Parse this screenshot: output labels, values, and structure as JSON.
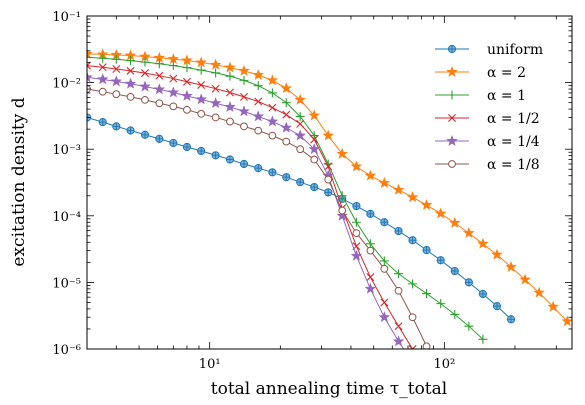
{
  "chart_data": {
    "type": "line",
    "xscale": "log",
    "yscale": "log",
    "xlabel": "total annealing time τ_total",
    "ylabel": "excitation density d",
    "xlim": [
      3,
      350
    ],
    "ylim": [
      1e-06,
      0.1
    ],
    "grid": false,
    "legend_placement": "top-right",
    "x_ticks": [
      {
        "value": 10,
        "label": "10¹"
      },
      {
        "value": 100,
        "label": "10²"
      }
    ],
    "y_ticks": [
      {
        "value": 0.1,
        "label": "10⁻¹"
      },
      {
        "value": 0.01,
        "label": "10⁻²"
      },
      {
        "value": 0.001,
        "label": "10⁻³"
      },
      {
        "value": 0.0001,
        "label": "10⁻⁴"
      },
      {
        "value": 1e-05,
        "label": "10⁻⁵"
      },
      {
        "value": 1e-06,
        "label": "10⁻⁶"
      }
    ],
    "series": [
      {
        "name": "uniform",
        "color": "#1f77b4",
        "marker": "circle-plus",
        "points": [
          [
            3.0,
            0.003
          ],
          [
            3.5,
            0.00255
          ],
          [
            4.0,
            0.0022
          ],
          [
            4.6,
            0.00191
          ],
          [
            5.3,
            0.00165
          ],
          [
            6.1,
            0.00143
          ],
          [
            7.0,
            0.00124
          ],
          [
            8.0,
            0.00108
          ],
          [
            9.2,
            0.00094
          ],
          [
            10.6,
            0.00081
          ],
          [
            12.2,
            0.0007
          ],
          [
            14.0,
            0.0006
          ],
          [
            16.1,
            0.00052
          ],
          [
            18.5,
            0.00045
          ],
          [
            21.2,
            0.00038
          ],
          [
            24.3,
            0.00032
          ],
          [
            27.9,
            0.00027
          ],
          [
            32.0,
            0.000225
          ],
          [
            36.7,
            0.00018
          ],
          [
            42.2,
            0.00014
          ],
          [
            48.4,
            0.000107
          ],
          [
            55.5,
            8e-05
          ],
          [
            63.8,
            5.9e-05
          ],
          [
            73.2,
            4.3e-05
          ],
          [
            84.0,
            3.05e-05
          ],
          [
            96.5,
            2.15e-05
          ],
          [
            110.8,
            1.48e-05
          ],
          [
            127.2,
            1e-05
          ],
          [
            146.0,
            6.7e-06
          ],
          [
            167.6,
            4.4e-06
          ],
          [
            192.4,
            2.8e-06
          ]
        ]
      },
      {
        "name": "α = 2",
        "color": "#ff7f0e",
        "marker": "star",
        "points": [
          [
            3.0,
            0.027
          ],
          [
            3.5,
            0.0265
          ],
          [
            4.0,
            0.026
          ],
          [
            4.6,
            0.0255
          ],
          [
            5.3,
            0.0245
          ],
          [
            6.1,
            0.0235
          ],
          [
            7.0,
            0.0225
          ],
          [
            8.0,
            0.0215
          ],
          [
            9.2,
            0.02
          ],
          [
            10.6,
            0.0185
          ],
          [
            12.2,
            0.0168
          ],
          [
            14.0,
            0.015
          ],
          [
            16.1,
            0.013
          ],
          [
            18.5,
            0.0108
          ],
          [
            21.2,
            0.0082
          ],
          [
            24.3,
            0.0055
          ],
          [
            27.9,
            0.0032
          ],
          [
            32.0,
            0.0016
          ],
          [
            36.7,
            0.00085
          ],
          [
            42.2,
            0.00055
          ],
          [
            48.4,
            0.0004
          ],
          [
            55.5,
            0.00031
          ],
          [
            63.8,
            0.000245
          ],
          [
            73.2,
            0.00019
          ],
          [
            84.0,
            0.000145
          ],
          [
            96.5,
            0.000108
          ],
          [
            110.8,
            7.8e-05
          ],
          [
            127.2,
            5.5e-05
          ],
          [
            146.0,
            3.8e-05
          ],
          [
            167.6,
            2.6e-05
          ],
          [
            192.4,
            1.7e-05
          ],
          [
            220.9,
            1.1e-05
          ],
          [
            253.6,
            7e-06
          ],
          [
            291.0,
            4.3e-06
          ],
          [
            334.1,
            2.6e-06
          ]
        ]
      },
      {
        "name": "α = 1",
        "color": "#2ca02c",
        "marker": "plus",
        "points": [
          [
            3.0,
            0.024
          ],
          [
            3.5,
            0.0232
          ],
          [
            4.0,
            0.0224
          ],
          [
            4.6,
            0.0214
          ],
          [
            5.3,
            0.0203
          ],
          [
            6.1,
            0.0192
          ],
          [
            7.0,
            0.018
          ],
          [
            8.0,
            0.0168
          ],
          [
            9.2,
            0.0154
          ],
          [
            10.6,
            0.014
          ],
          [
            12.2,
            0.0125
          ],
          [
            14.0,
            0.0108
          ],
          [
            16.1,
            0.009
          ],
          [
            18.5,
            0.007
          ],
          [
            21.2,
            0.005
          ],
          [
            24.3,
            0.0031
          ],
          [
            27.9,
            0.0016
          ],
          [
            32.0,
            0.0006
          ],
          [
            36.7,
            0.0002
          ],
          [
            42.2,
            8e-05
          ],
          [
            48.4,
            3.8e-05
          ],
          [
            55.5,
            2.1e-05
          ],
          [
            63.8,
            1.35e-05
          ],
          [
            73.2,
            9.5e-06
          ],
          [
            84.0,
            6.8e-06
          ],
          [
            96.5,
            4.8e-06
          ],
          [
            110.8,
            3.3e-06
          ],
          [
            127.2,
            2.2e-06
          ],
          [
            146.0,
            1.4e-06
          ]
        ]
      },
      {
        "name": "α = 1/2",
        "color": "#d62728",
        "marker": "x",
        "points": [
          [
            3.0,
            0.018
          ],
          [
            3.5,
            0.017
          ],
          [
            4.0,
            0.016
          ],
          [
            4.6,
            0.015
          ],
          [
            5.3,
            0.0139
          ],
          [
            6.1,
            0.0127
          ],
          [
            7.0,
            0.0115
          ],
          [
            8.0,
            0.0103
          ],
          [
            9.2,
            0.0092
          ],
          [
            10.6,
            0.0081
          ],
          [
            12.2,
            0.0071
          ],
          [
            14.0,
            0.0061
          ],
          [
            16.1,
            0.0052
          ],
          [
            18.5,
            0.0042
          ],
          [
            21.2,
            0.0033
          ],
          [
            24.3,
            0.0024
          ],
          [
            27.9,
            0.0014
          ],
          [
            32.0,
            0.00055
          ],
          [
            36.7,
            0.00013
          ],
          [
            42.2,
            3.5e-05
          ],
          [
            48.4,
            1.2e-05
          ],
          [
            55.5,
            5e-06
          ],
          [
            63.8,
            2.2e-06
          ],
          [
            73.2,
            1e-06
          ]
        ]
      },
      {
        "name": "α = 1/4",
        "color": "#9467bd",
        "marker": "star",
        "points": [
          [
            3.0,
            0.012
          ],
          [
            3.5,
            0.0112
          ],
          [
            4.0,
            0.0104
          ],
          [
            4.6,
            0.0096
          ],
          [
            5.3,
            0.0087
          ],
          [
            6.1,
            0.0079
          ],
          [
            7.0,
            0.0071
          ],
          [
            8.0,
            0.0063
          ],
          [
            9.2,
            0.0056
          ],
          [
            10.6,
            0.0049
          ],
          [
            12.2,
            0.0043
          ],
          [
            14.0,
            0.0037
          ],
          [
            16.1,
            0.0031
          ],
          [
            18.5,
            0.0026
          ],
          [
            21.2,
            0.0021
          ],
          [
            24.3,
            0.0016
          ],
          [
            27.9,
            0.001
          ],
          [
            32.0,
            0.0004
          ],
          [
            36.7,
            0.0001
          ],
          [
            42.2,
            2.5e-05
          ],
          [
            48.4,
            8e-06
          ],
          [
            55.5,
            3e-06
          ],
          [
            63.8,
            1.3e-06
          ],
          [
            70.0,
            8e-07
          ]
        ]
      },
      {
        "name": "α = 1/8",
        "color": "#8c564b",
        "marker": "circle",
        "points": [
          [
            3.0,
            0.008
          ],
          [
            3.5,
            0.0073
          ],
          [
            4.0,
            0.0067
          ],
          [
            4.6,
            0.0061
          ],
          [
            5.3,
            0.0055
          ],
          [
            6.1,
            0.0049
          ],
          [
            7.0,
            0.0044
          ],
          [
            8.0,
            0.0039
          ],
          [
            9.2,
            0.0034
          ],
          [
            10.6,
            0.003
          ],
          [
            12.2,
            0.0026
          ],
          [
            14.0,
            0.0022
          ],
          [
            16.1,
            0.0019
          ],
          [
            18.5,
            0.0016
          ],
          [
            21.2,
            0.0013
          ],
          [
            24.3,
            0.001
          ],
          [
            27.9,
            0.0007
          ],
          [
            32.0,
            0.00035
          ],
          [
            36.7,
            0.00012
          ],
          [
            42.2,
            5.5e-05
          ],
          [
            48.4,
            3e-05
          ],
          [
            55.5,
            1.6e-05
          ],
          [
            63.8,
            7.5e-06
          ],
          [
            73.2,
            3e-06
          ],
          [
            84.0,
            1.1e-06
          ]
        ]
      }
    ]
  }
}
